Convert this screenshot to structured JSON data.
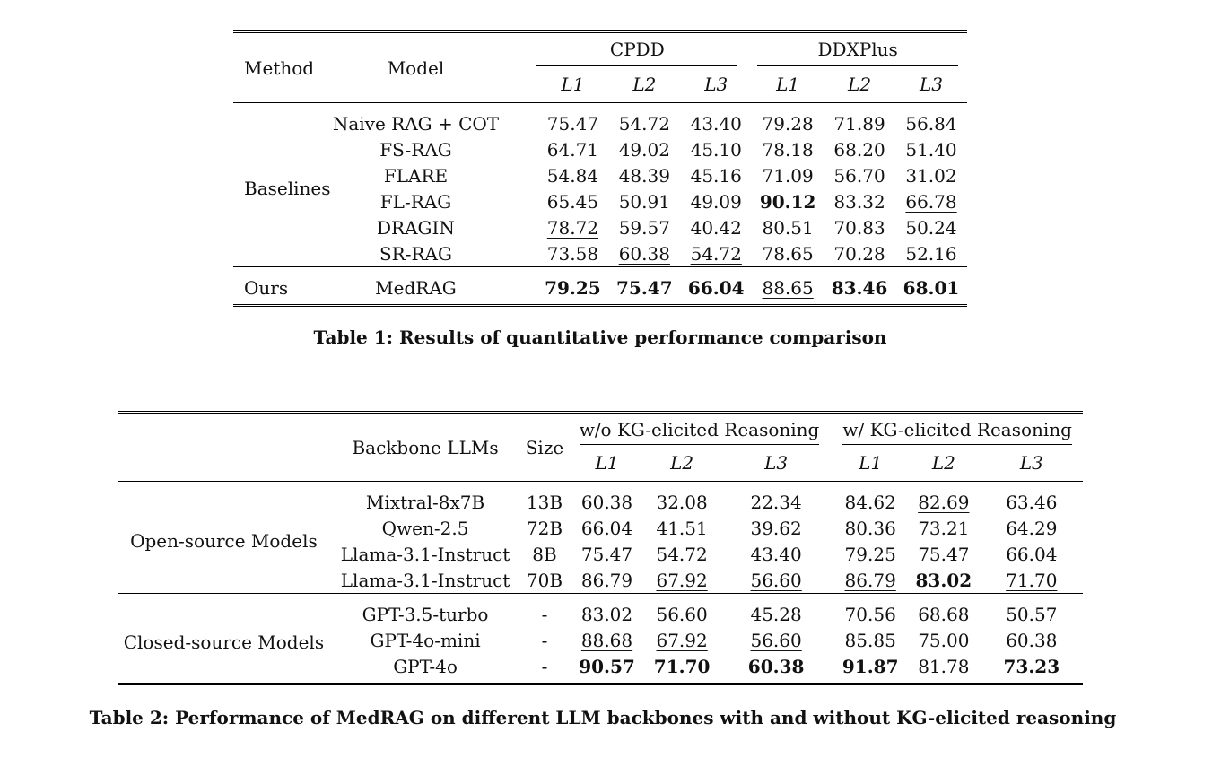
{
  "table1": {
    "caption": "Table 1: Results of quantitative performance comparison",
    "headers": {
      "method": "Method",
      "model": "Model",
      "group1": "CPDD",
      "group2": "DDXPlus",
      "l1": "L1",
      "l2": "L2",
      "l3": "L3"
    },
    "groups": [
      {
        "name": "Baselines",
        "rows": [
          {
            "model": "Naive RAG + COT",
            "values": [
              "75.47",
              "54.72",
              "43.40",
              "79.28",
              "71.89",
              "56.84"
            ]
          },
          {
            "model": "FS-RAG",
            "values": [
              "64.71",
              "49.02",
              "45.10",
              "78.18",
              "68.20",
              "51.40"
            ]
          },
          {
            "model": "FLARE",
            "values": [
              "54.84",
              "48.39",
              "45.16",
              "71.09",
              "56.70",
              "31.02"
            ]
          },
          {
            "model": "FL-RAG",
            "values": [
              "65.45",
              "50.91",
              "49.09",
              "90.12",
              "83.32",
              "66.78"
            ]
          },
          {
            "model": "DRAGIN",
            "values": [
              "78.72",
              "59.57",
              "40.42",
              "80.51",
              "70.83",
              "50.24"
            ]
          },
          {
            "model": "SR-RAG",
            "values": [
              "73.58",
              "60.38",
              "54.72",
              "78.65",
              "70.28",
              "52.16"
            ]
          }
        ]
      },
      {
        "name": "Ours",
        "rows": [
          {
            "model": "MedRAG",
            "values": [
              "79.25",
              "75.47",
              "66.04",
              "88.65",
              "83.46",
              "68.01"
            ]
          }
        ]
      }
    ]
  },
  "table2": {
    "caption": "Table 2: Performance of MedRAG on different LLM backbones with and without KG-elicited reasoning",
    "headers": {
      "backbone": "Backbone LLMs",
      "size": "Size",
      "group1": "w/o KG-elicited Reasoning",
      "group2": "w/ KG-elicited Reasoning",
      "l1": "L1",
      "l2": "L2",
      "l3": "L3"
    },
    "groups": [
      {
        "name": "Open-source Models",
        "rows": [
          {
            "model": "Mixtral-8x7B",
            "size": "13B",
            "values": [
              "60.38",
              "32.08",
              "22.34",
              "84.62",
              "82.69",
              "63.46"
            ]
          },
          {
            "model": "Qwen-2.5",
            "size": "72B",
            "values": [
              "66.04",
              "41.51",
              "39.62",
              "80.36",
              "73.21",
              "64.29"
            ]
          },
          {
            "model": "Llama-3.1-Instruct",
            "size": "8B",
            "values": [
              "75.47",
              "54.72",
              "43.40",
              "79.25",
              "75.47",
              "66.04"
            ]
          },
          {
            "model": "Llama-3.1-Instruct",
            "size": "70B",
            "values": [
              "86.79",
              "67.92",
              "56.60",
              "86.79",
              "83.02",
              "71.70"
            ]
          }
        ]
      },
      {
        "name": "Closed-source Models",
        "rows": [
          {
            "model": "GPT-3.5-turbo",
            "size": "-",
            "values": [
              "83.02",
              "56.60",
              "45.28",
              "70.56",
              "68.68",
              "50.57"
            ]
          },
          {
            "model": "GPT-4o-mini",
            "size": "-",
            "values": [
              "88.68",
              "67.92",
              "56.60",
              "85.85",
              "75.00",
              "60.38"
            ]
          },
          {
            "model": "GPT-4o",
            "size": "-",
            "values": [
              "90.57",
              "71.70",
              "60.38",
              "91.87",
              "81.78",
              "73.23"
            ]
          }
        ]
      }
    ]
  }
}
